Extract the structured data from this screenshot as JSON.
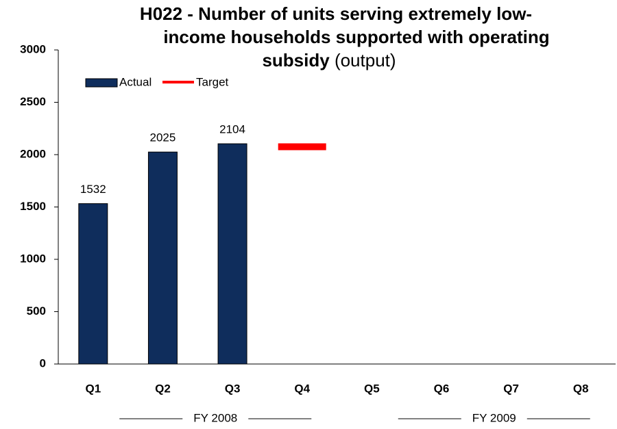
{
  "chart_data": {
    "type": "bar",
    "title": [
      "H022 - Number of units serving extremely low-",
      "income households supported with operating",
      "subsidy"
    ],
    "title_note": "(output)",
    "categories": [
      "Q1",
      "Q2",
      "Q3",
      "Q4",
      "Q5",
      "Q6",
      "Q7",
      "Q8"
    ],
    "series": [
      {
        "name": "Actual",
        "color": "#0f2d5c",
        "values": [
          1532,
          2025,
          2104,
          null,
          null,
          null,
          null,
          null
        ]
      },
      {
        "name": "Target",
        "color": "#ff0000",
        "values": [
          null,
          null,
          null,
          2075,
          null,
          null,
          null,
          null
        ]
      }
    ],
    "groups": [
      {
        "label": "FY 2008",
        "from": "Q1",
        "to": "Q4"
      },
      {
        "label": "FY 2009",
        "from": "Q5",
        "to": "Q8"
      }
    ],
    "ylim": [
      0,
      3000
    ],
    "yticks": [
      0,
      500,
      1000,
      1500,
      2000,
      2500,
      3000
    ],
    "grid": false,
    "legend": "top-left"
  }
}
